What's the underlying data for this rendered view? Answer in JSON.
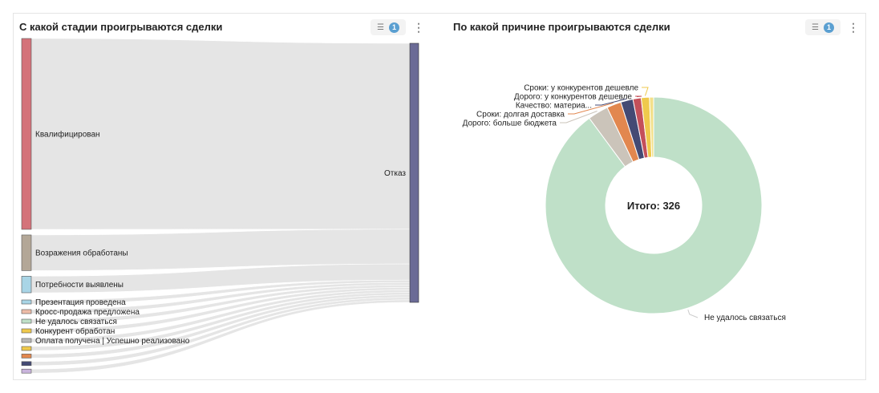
{
  "left_panel": {
    "title": "С какой стадии проигрываются сделки",
    "filter_count": "1"
  },
  "right_panel": {
    "title": "По какой причине проигрываются сделки",
    "filter_count": "1"
  },
  "chart_data": [
    {
      "type": "sankey",
      "title": "С какой стадии проигрываются сделки",
      "target": {
        "label": "Отказ",
        "color": "#6b6b96"
      },
      "sources": [
        {
          "label": "Квалифицирован",
          "value": 150,
          "color": "#d4737a"
        },
        {
          "label": "Возражения обработаны",
          "value": 28,
          "color": "#b3a797"
        },
        {
          "label": "Потребности выявлены",
          "value": 13,
          "color": "#a9d5e6"
        },
        {
          "label": "Презентация проведена",
          "value": 2,
          "color": "#a9d5e6"
        },
        {
          "label": "Кросс-продажа предложена",
          "value": 2,
          "color": "#eebca8"
        },
        {
          "label": "Не удалось связаться",
          "value": 2,
          "color": "#bfe0c8"
        },
        {
          "label": "Конкурент обработан",
          "value": 2,
          "color": "#efc94c"
        },
        {
          "label": "Оплата получена | Успешно реализовано",
          "value": 2,
          "color": "#b9b9b9"
        },
        {
          "label": "",
          "value": 2,
          "color": "#efc94c"
        },
        {
          "label": "",
          "value": 2,
          "color": "#e2874f"
        },
        {
          "label": "",
          "value": 2,
          "color": "#444a74"
        },
        {
          "label": "",
          "value": 2,
          "color": "#c9b4dc"
        }
      ]
    },
    {
      "type": "pie",
      "title": "По какой причине проигрываются сделки",
      "center_label": "Итого: 326",
      "slices": [
        {
          "label": "Не удалось связаться",
          "value": 293,
          "color": "#bfe0c8"
        },
        {
          "label": "Дорого: больше бюджета",
          "value": 10,
          "color": "#cbc4ba"
        },
        {
          "label": "Сроки: долгая доставка",
          "value": 7,
          "color": "#e2874f"
        },
        {
          "label": "Качество: материа...",
          "value": 6,
          "color": "#444a74"
        },
        {
          "label": "Дорого: у конкурентов дешевле",
          "value": 4,
          "color": "#c4505a"
        },
        {
          "label": "Сроки: у конкурентов дешевле",
          "value": 4,
          "color": "#efc94c"
        },
        {
          "label": "",
          "value": 2,
          "color": "#f3e08a"
        }
      ]
    }
  ]
}
